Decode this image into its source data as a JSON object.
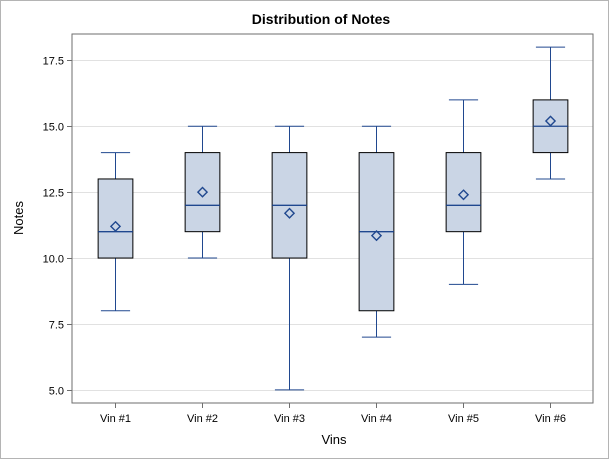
{
  "chart_data": {
    "type": "box",
    "title": "Distribution of Notes",
    "xlabel": "Vins",
    "ylabel": "Notes",
    "ylim": [
      4.5,
      18.5
    ],
    "yticks": [
      5.0,
      7.5,
      10.0,
      12.5,
      15.0,
      17.5
    ],
    "ytick_labels": [
      "5.0",
      "7.5",
      "10.0",
      "12.5",
      "15.0",
      "17.5"
    ],
    "grid": true,
    "categories": [
      "Vin #1",
      "Vin #2",
      "Vin #3",
      "Vin #4",
      "Vin #5",
      "Vin #6"
    ],
    "boxes": [
      {
        "min": 8,
        "q1": 10,
        "median": 11,
        "q3": 13,
        "max": 14,
        "mean": 11.2
      },
      {
        "min": 10,
        "q1": 11,
        "median": 12,
        "q3": 14,
        "max": 15,
        "mean": 12.5
      },
      {
        "min": 5,
        "q1": 10,
        "median": 12,
        "q3": 14,
        "max": 15,
        "mean": 11.7
      },
      {
        "min": 7,
        "q1": 8,
        "median": 11,
        "q3": 14,
        "max": 15,
        "mean": 10.85
      },
      {
        "min": 9,
        "q1": 11,
        "median": 12,
        "q3": 14,
        "max": 16,
        "mean": 12.4
      },
      {
        "min": 13,
        "q1": 14,
        "median": 15,
        "q3": 16,
        "max": 18,
        "mean": 15.2
      }
    ],
    "colors": {
      "box_fill": "#cad5e5",
      "box_stroke": "#000000",
      "whisker": "#20488f",
      "median": "#20488f",
      "mean_marker": "#20488f",
      "grid": "#e1e1e1",
      "axis": "#6e6e6e"
    }
  }
}
